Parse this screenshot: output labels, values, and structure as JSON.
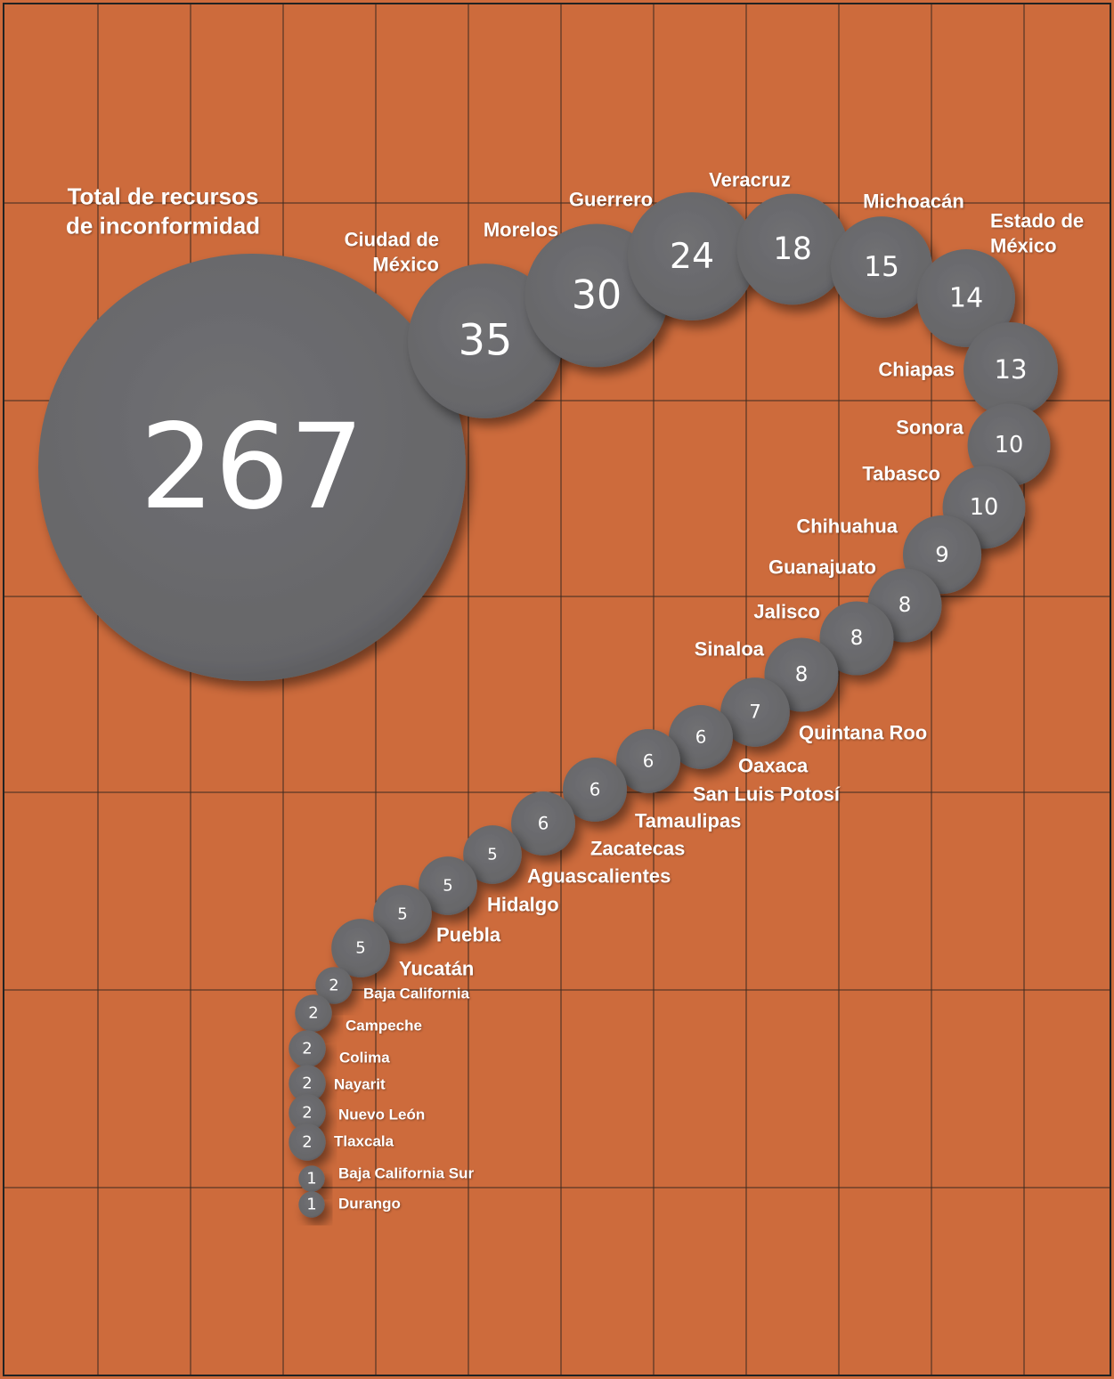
{
  "chart_data": {
    "type": "bubble",
    "categories": [
      "Total de recursos de inconformidad",
      "Ciudad de México",
      "Morelos",
      "Guerrero",
      "Veracruz",
      "Michoacán",
      "Estado de México",
      "Chiapas",
      "Sonora",
      "Tabasco",
      "Chihuahua",
      "Guanajuato",
      "Jalisco",
      "Sinaloa",
      "Quintana Roo",
      "Oaxaca",
      "San Luis Potosí",
      "Tamaulipas",
      "Zacatecas",
      "Aguascalientes",
      "Hidalgo",
      "Puebla",
      "Yucatán",
      "Baja California",
      "Campeche",
      "Colima",
      "Nayarit",
      "Nuevo León",
      "Tlaxcala",
      "Baja California Sur",
      "Durango"
    ],
    "values": [
      267,
      35,
      30,
      24,
      18,
      15,
      14,
      13,
      10,
      10,
      9,
      8,
      8,
      8,
      7,
      6,
      6,
      6,
      6,
      5,
      5,
      5,
      5,
      2,
      2,
      2,
      2,
      2,
      2,
      1,
      1
    ],
    "color": "#6a6a6c"
  }
}
